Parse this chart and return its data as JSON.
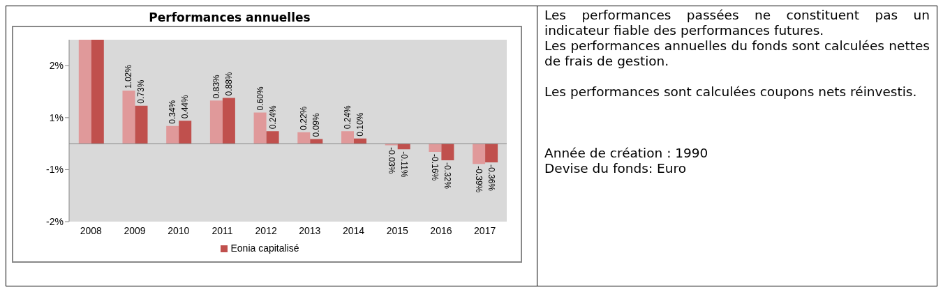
{
  "chart_data": {
    "type": "bar",
    "title": "Performances annuelles",
    "categories": [
      "2008",
      "2009",
      "2010",
      "2011",
      "2012",
      "2013",
      "2014",
      "2015",
      "2016",
      "2017"
    ],
    "series": [
      {
        "color": "#e0999a",
        "values": [
          2,
          1.02,
          0.34,
          0.83,
          0.6,
          0.22,
          0.24,
          -0.03,
          -0.16,
          -0.39
        ],
        "value_labels": [
          null,
          "1.02%",
          "0.34%",
          "0.83%",
          "0.60%",
          "0.22%",
          "0.24%",
          "-0.03%",
          "-0.16%",
          "-0.39%"
        ]
      },
      {
        "name": "Eonia capitalisé",
        "color": "#c0504d",
        "values": [
          2,
          0.73,
          0.44,
          0.88,
          0.24,
          0.09,
          0.1,
          -0.11,
          -0.32,
          -0.36
        ],
        "value_labels": [
          null,
          "0.73%",
          "0.44%",
          "0.88%",
          "0.24%",
          "0.09%",
          "0.10%",
          "-0.11%",
          "-0.32%",
          "-0.36%"
        ]
      }
    ],
    "ylim": [
      -1.5,
      2
    ],
    "yticks": [
      {
        "value": -1.5,
        "label": "-2%"
      },
      {
        "value": -0.5,
        "label": "-1%"
      },
      {
        "value": 0.5,
        "label": "1%"
      },
      {
        "value": 1.5,
        "label": "2%"
      }
    ],
    "legend": "bottom",
    "annotations": [
      "Les performances passées ne constituent pas un indicateur fiable des performances futures.",
      "Les performances annuelles du fonds sont calculées nettes de frais de gestion.",
      "Les performances sont calculées coupons nets réinvestis.",
      "Année de création : 1990",
      "Devise du fonds: Euro"
    ]
  }
}
